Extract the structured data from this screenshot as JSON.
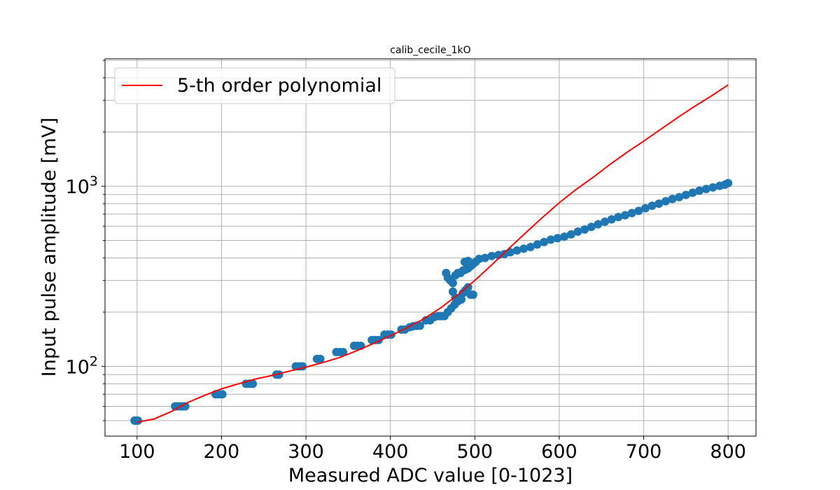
{
  "chart_data": {
    "type": "scatter",
    "title": "calib_cecile_1kO",
    "xlabel": "Measured ADC value [0-1023]",
    "ylabel": "Input pulse amplitude [mV]",
    "xlim": [
      62,
      833
    ],
    "ylim": [
      41,
      5100
    ],
    "yscale": "log",
    "grid": true,
    "legend_position": "top-left",
    "x_ticks": [
      100,
      200,
      300,
      400,
      500,
      600,
      700,
      800
    ],
    "y_ticks": [
      {
        "value": 100,
        "base": "10",
        "exp": "2"
      },
      {
        "value": 1000,
        "base": "10",
        "exp": "3"
      }
    ],
    "series": [
      {
        "name": "",
        "kind": "scatter",
        "color": "#1f77b4",
        "points": [
          [
            97,
            50
          ],
          [
            99,
            50
          ],
          [
            101,
            50
          ],
          [
            145,
            60
          ],
          [
            148,
            60
          ],
          [
            151,
            60
          ],
          [
            154,
            60
          ],
          [
            157,
            60
          ],
          [
            193,
            70
          ],
          [
            197,
            70
          ],
          [
            201,
            70
          ],
          [
            229,
            80
          ],
          [
            233,
            80
          ],
          [
            237,
            80
          ],
          [
            265,
            90
          ],
          [
            268,
            90
          ],
          [
            288,
            100
          ],
          [
            292,
            100
          ],
          [
            296,
            100
          ],
          [
            313,
            110
          ],
          [
            317,
            110
          ],
          [
            336,
            120
          ],
          [
            340,
            120
          ],
          [
            344,
            120
          ],
          [
            357,
            130
          ],
          [
            361,
            130
          ],
          [
            365,
            130
          ],
          [
            378,
            140
          ],
          [
            382,
            140
          ],
          [
            386,
            140
          ],
          [
            393,
            150
          ],
          [
            397,
            150
          ],
          [
            401,
            150
          ],
          [
            413,
            160
          ],
          [
            417,
            160
          ],
          [
            423,
            165
          ],
          [
            427,
            167
          ],
          [
            431,
            168
          ],
          [
            435,
            168
          ],
          [
            442,
            180
          ],
          [
            447,
            180
          ],
          [
            452,
            188
          ],
          [
            456,
            190
          ],
          [
            460,
            190
          ],
          [
            464,
            190
          ],
          [
            468,
            200
          ],
          [
            472,
            210
          ],
          [
            476,
            220
          ],
          [
            480,
            230
          ],
          [
            484,
            235
          ],
          [
            466,
            330
          ],
          [
            468,
            310
          ],
          [
            471,
            300
          ],
          [
            474,
            290
          ],
          [
            477,
            320
          ],
          [
            480,
            330
          ],
          [
            483,
            330
          ],
          [
            486,
            340
          ],
          [
            489,
            345
          ],
          [
            474,
            260
          ],
          [
            477,
            240
          ],
          [
            480,
            230
          ],
          [
            483,
            240
          ],
          [
            486,
            255
          ],
          [
            489,
            265
          ],
          [
            492,
            275
          ],
          [
            495,
            250
          ],
          [
            498,
            250
          ],
          [
            492,
            350
          ],
          [
            495,
            360
          ],
          [
            498,
            370
          ],
          [
            501,
            380
          ],
          [
            488,
            380
          ],
          [
            492,
            385
          ],
          [
            505,
            395
          ],
          [
            512,
            400
          ],
          [
            520,
            410
          ],
          [
            528,
            415
          ],
          [
            535,
            420
          ],
          [
            542,
            430
          ],
          [
            550,
            440
          ],
          [
            558,
            450
          ],
          [
            566,
            460
          ],
          [
            574,
            475
          ],
          [
            582,
            490
          ],
          [
            590,
            505
          ],
          [
            598,
            515
          ],
          [
            606,
            525
          ],
          [
            614,
            540
          ],
          [
            622,
            560
          ],
          [
            630,
            575
          ],
          [
            638,
            595
          ],
          [
            646,
            615
          ],
          [
            654,
            635
          ],
          [
            662,
            655
          ],
          [
            670,
            675
          ],
          [
            678,
            690
          ],
          [
            686,
            710
          ],
          [
            694,
            730
          ],
          [
            702,
            755
          ],
          [
            710,
            780
          ],
          [
            718,
            800
          ],
          [
            726,
            825
          ],
          [
            734,
            850
          ],
          [
            742,
            870
          ],
          [
            750,
            895
          ],
          [
            758,
            920
          ],
          [
            766,
            945
          ],
          [
            774,
            965
          ],
          [
            782,
            985
          ],
          [
            790,
            1005
          ],
          [
            796,
            1020
          ],
          [
            800,
            1040
          ]
        ]
      },
      {
        "name": "5-th order polynomial",
        "kind": "line",
        "color": "#ff0000",
        "points": [
          [
            100,
            49
          ],
          [
            120,
            51
          ],
          [
            140,
            56
          ],
          [
            160,
            63
          ],
          [
            180,
            69
          ],
          [
            200,
            75
          ],
          [
            220,
            80
          ],
          [
            240,
            85
          ],
          [
            260,
            89
          ],
          [
            280,
            94
          ],
          [
            300,
            99
          ],
          [
            320,
            105
          ],
          [
            340,
            112
          ],
          [
            360,
            122
          ],
          [
            380,
            134
          ],
          [
            400,
            148
          ],
          [
            420,
            164
          ],
          [
            440,
            184
          ],
          [
            460,
            212
          ],
          [
            480,
            250
          ],
          [
            500,
            300
          ],
          [
            520,
            366
          ],
          [
            540,
            450
          ],
          [
            560,
            550
          ],
          [
            580,
            670
          ],
          [
            600,
            810
          ],
          [
            620,
            960
          ],
          [
            640,
            1120
          ],
          [
            660,
            1320
          ],
          [
            680,
            1540
          ],
          [
            700,
            1780
          ],
          [
            720,
            2070
          ],
          [
            740,
            2400
          ],
          [
            760,
            2770
          ],
          [
            780,
            3170
          ],
          [
            800,
            3650
          ]
        ]
      }
    ]
  }
}
